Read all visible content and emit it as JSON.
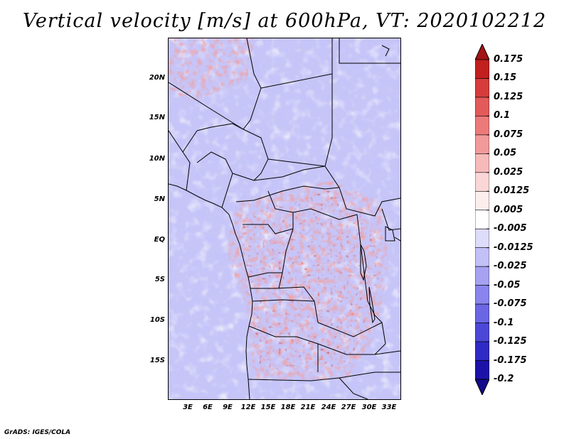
{
  "title": "Vertical velocity [m/s] at 600hPa, VT: 2020102212",
  "credit": "GrADS: IGES/COLA",
  "y_axis_labels": [
    "20N",
    "15N",
    "10N",
    "5N",
    "EQ",
    "5S",
    "10S",
    "15S"
  ],
  "x_axis_labels": [
    "3E",
    "6E",
    "9E",
    "12E",
    "15E",
    "18E",
    "21E",
    "24E",
    "27E",
    "30E",
    "33E"
  ],
  "colorbar": {
    "labels": [
      "0.175",
      "0.15",
      "0.125",
      "0.1",
      "0.075",
      "0.05",
      "0.025",
      "0.0125",
      "0.005",
      "-0.005",
      "-0.0125",
      "-0.025",
      "-0.05",
      "-0.075",
      "-0.1",
      "-0.125",
      "-0.175",
      "-0.2"
    ],
    "colors": [
      "#a31414",
      "#c21f1f",
      "#d63c3c",
      "#e35a5a",
      "#ec7a7a",
      "#f29a9a",
      "#f7baba",
      "#fad6d6",
      "#fdeeee",
      "#ffffff",
      "#dedcfb",
      "#c3c0f7",
      "#a6a2f1",
      "#8985ec",
      "#6b66e4",
      "#4c47d7",
      "#2f2ac4",
      "#1c12a8",
      "#140a8c"
    ]
  }
}
